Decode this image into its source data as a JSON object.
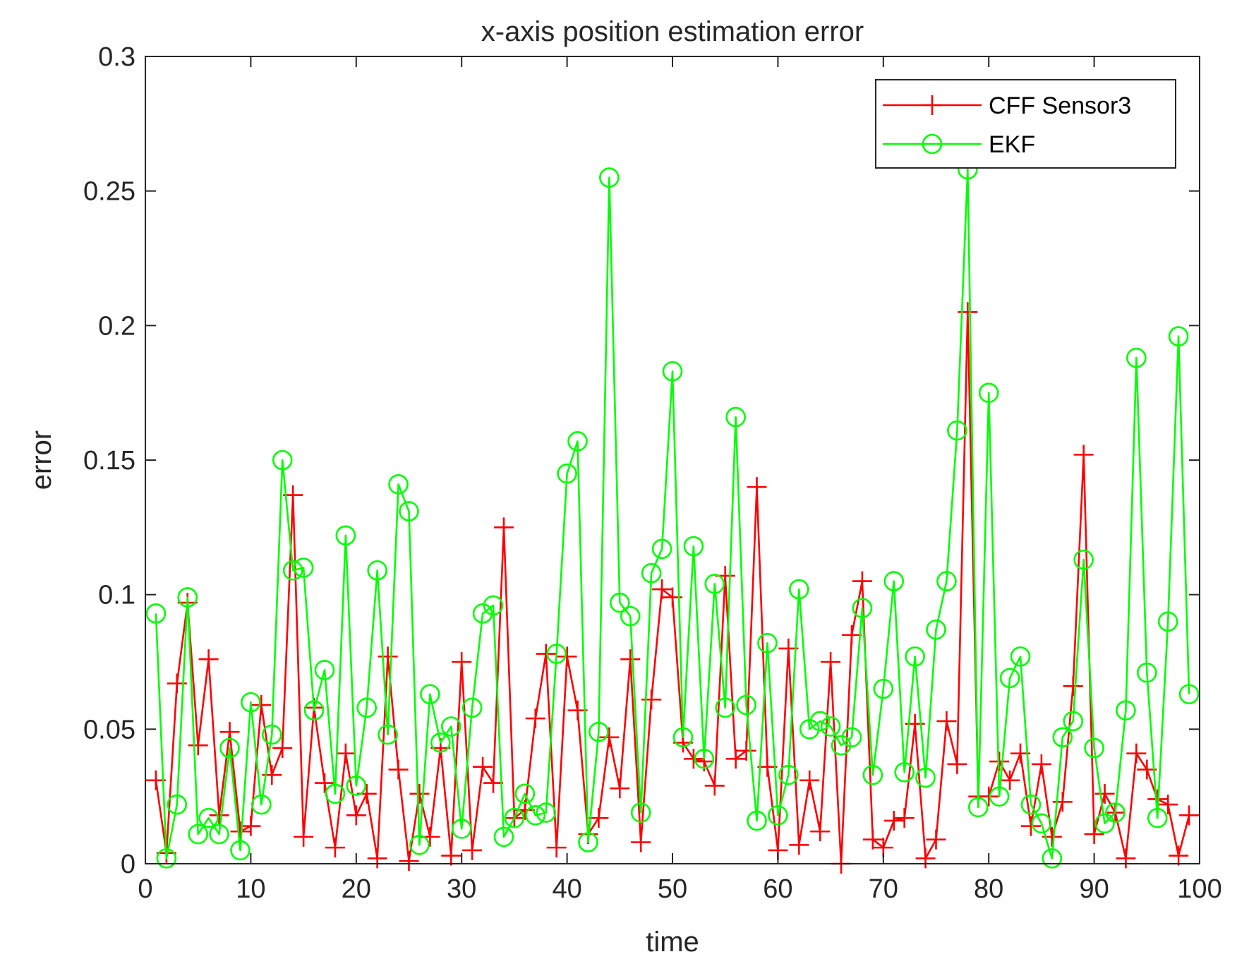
{
  "chart_data": {
    "type": "line",
    "title": "x-axis position estimation error",
    "xlabel": "time",
    "ylabel": "error",
    "xlim": [
      0,
      100
    ],
    "ylim": [
      0,
      0.3
    ],
    "xticks": [
      0,
      10,
      20,
      30,
      40,
      50,
      60,
      70,
      80,
      90,
      100
    ],
    "xtick_labels": [
      "0",
      "10",
      "20",
      "30",
      "40",
      "50",
      "60",
      "70",
      "80",
      "90",
      "100"
    ],
    "yticks": [
      0,
      0.05,
      0.1,
      0.15,
      0.2,
      0.25,
      0.3
    ],
    "ytick_labels": [
      "0",
      "0.05",
      "0.1",
      "0.15",
      "0.2",
      "0.25",
      "0.3"
    ],
    "grid": false,
    "legend_position": "top-right",
    "x": [
      1,
      2,
      3,
      4,
      5,
      6,
      7,
      8,
      9,
      10,
      11,
      12,
      13,
      14,
      15,
      16,
      17,
      18,
      19,
      20,
      21,
      22,
      23,
      24,
      25,
      26,
      27,
      28,
      29,
      30,
      31,
      32,
      33,
      34,
      35,
      36,
      37,
      38,
      39,
      40,
      41,
      42,
      43,
      44,
      45,
      46,
      47,
      48,
      49,
      50,
      51,
      52,
      53,
      54,
      55,
      56,
      57,
      58,
      59,
      60,
      61,
      62,
      63,
      64,
      65,
      66,
      67,
      68,
      69,
      70,
      71,
      72,
      73,
      74,
      75,
      76,
      77,
      78,
      79,
      80,
      81,
      82,
      83,
      84,
      85,
      86,
      87,
      88,
      89,
      90,
      91,
      92,
      93,
      94,
      95,
      96,
      97,
      98,
      99
    ],
    "series": [
      {
        "name": "CFF Sensor3",
        "color": "#ff0000",
        "marker": "plus",
        "values": [
          0.031,
          0.004,
          0.067,
          0.097,
          0.044,
          0.076,
          0.018,
          0.049,
          0.012,
          0.014,
          0.059,
          0.033,
          0.043,
          0.137,
          0.01,
          0.058,
          0.03,
          0.006,
          0.041,
          0.018,
          0.026,
          0.002,
          0.077,
          0.035,
          0.001,
          0.026,
          0.01,
          0.043,
          0.003,
          0.075,
          0.005,
          0.036,
          0.03,
          0.125,
          0.017,
          0.02,
          0.054,
          0.078,
          0.006,
          0.077,
          0.057,
          0.011,
          0.017,
          0.047,
          0.028,
          0.076,
          0.008,
          0.061,
          0.102,
          0.099,
          0.045,
          0.039,
          0.038,
          0.029,
          0.107,
          0.039,
          0.042,
          0.14,
          0.036,
          0.005,
          0.08,
          0.007,
          0.031,
          0.012,
          0.075,
          0.0,
          0.085,
          0.105,
          0.009,
          0.006,
          0.016,
          0.017,
          0.052,
          0.002,
          0.009,
          0.053,
          0.037,
          0.205,
          0.025,
          0.025,
          0.038,
          0.031,
          0.041,
          0.014,
          0.037,
          0.01,
          0.023,
          0.066,
          0.152,
          0.011,
          0.026,
          0.019,
          0.002,
          0.041,
          0.035,
          0.024,
          0.022,
          0.003,
          0.018
        ]
      },
      {
        "name": "EKF",
        "color": "#00ff00",
        "marker": "circle",
        "values": [
          0.093,
          0.002,
          0.022,
          0.099,
          0.011,
          0.017,
          0.011,
          0.043,
          0.005,
          0.06,
          0.022,
          0.048,
          0.15,
          0.109,
          0.11,
          0.057,
          0.072,
          0.026,
          0.122,
          0.029,
          0.058,
          0.109,
          0.048,
          0.141,
          0.131,
          0.007,
          0.063,
          0.045,
          0.051,
          0.013,
          0.058,
          0.093,
          0.096,
          0.01,
          0.017,
          0.026,
          0.018,
          0.019,
          0.078,
          0.145,
          0.157,
          0.008,
          0.049,
          0.255,
          0.097,
          0.092,
          0.019,
          0.108,
          0.117,
          0.183,
          0.047,
          0.118,
          0.039,
          0.104,
          0.058,
          0.166,
          0.059,
          0.016,
          0.082,
          0.018,
          0.033,
          0.102,
          0.05,
          0.053,
          0.051,
          0.044,
          0.047,
          0.095,
          0.033,
          0.065,
          0.105,
          0.034,
          0.077,
          0.032,
          0.087,
          0.105,
          0.161,
          0.258,
          0.021,
          0.175,
          0.025,
          0.069,
          0.077,
          0.022,
          0.015,
          0.002,
          0.047,
          0.053,
          0.113,
          0.043,
          0.015,
          0.019,
          0.057,
          0.188,
          0.071,
          0.017,
          0.09,
          0.196,
          0.063
        ]
      }
    ]
  }
}
